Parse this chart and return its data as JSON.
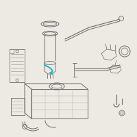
{
  "bg_color": "#ede9e3",
  "line_color": "#6a6a6a",
  "highlight_color": "#1ab3c8",
  "fig_width": 2.0,
  "fig_height": 2.0,
  "dpi": 100
}
